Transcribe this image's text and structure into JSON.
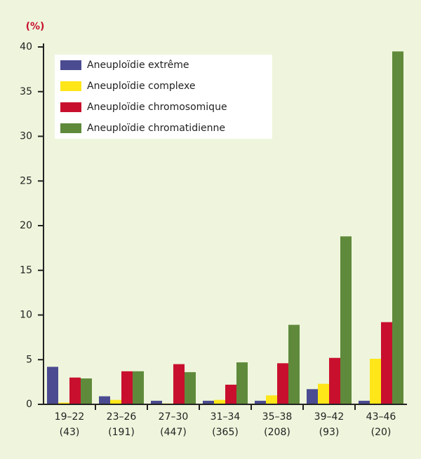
{
  "chart_data": {
    "type": "bar",
    "y_label": "(%)",
    "categories": [
      "19–22",
      "23–26",
      "27–30",
      "31–34",
      "35–38",
      "39–42",
      "43–46"
    ],
    "sample_sizes": [
      "(43)",
      "(191)",
      "(447)",
      "(365)",
      "(208)",
      "(93)",
      "(20)"
    ],
    "series": [
      {
        "name": "Aneuploïdie extrême",
        "color": "#4b4b91",
        "values": [
          4.2,
          0.9,
          0.4,
          0.4,
          0.4,
          1.7,
          0.4
        ]
      },
      {
        "name": "Aneuploïdie complexe",
        "color": "#ffe619",
        "values": [
          0.2,
          0.5,
          0.1,
          0.5,
          1.0,
          2.3,
          5.1
        ]
      },
      {
        "name": "Aneuploïdie chromosomique",
        "color": "#c8102e",
        "values": [
          3.0,
          3.7,
          4.5,
          2.2,
          4.6,
          5.2,
          9.2
        ]
      },
      {
        "name": "Aneuploïdie chromatidienne",
        "color": "#5f8a3b",
        "values": [
          2.9,
          3.7,
          3.6,
          4.7,
          8.9,
          18.8,
          39.5
        ]
      }
    ],
    "ylim": [
      0,
      40
    ],
    "yticks": [
      0,
      5,
      10,
      15,
      20,
      25,
      30,
      35,
      40
    ],
    "legend": "top-left"
  }
}
